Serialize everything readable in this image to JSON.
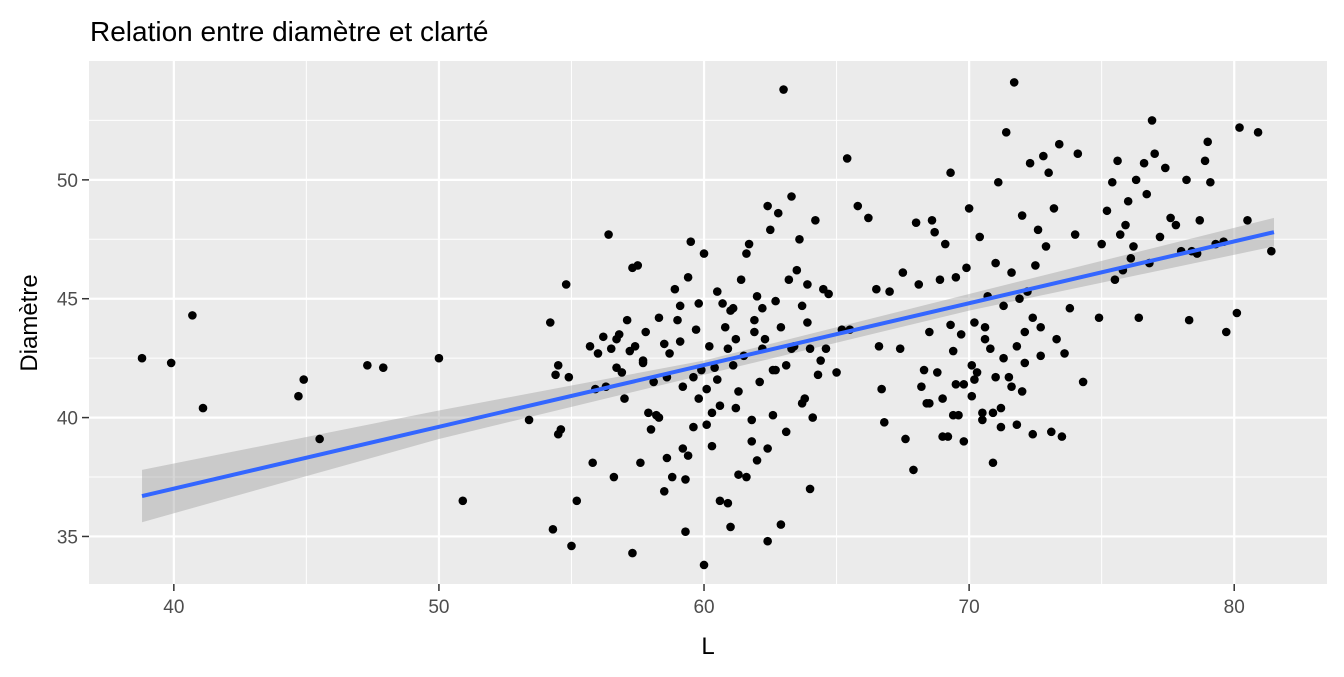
{
  "chart_data": {
    "type": "scatter",
    "title": "Relation entre diamètre et clarté",
    "xlabel": "L",
    "ylabel": "Diamètre",
    "xlim": [
      36.8,
      83.5
    ],
    "ylim": [
      33.0,
      55.0
    ],
    "x_ticks": [
      40,
      50,
      60,
      70,
      80
    ],
    "y_ticks": [
      35,
      40,
      45,
      50
    ],
    "x_tick_labels": [
      "40",
      "50",
      "60",
      "70",
      "80"
    ],
    "y_tick_labels": [
      "35",
      "40",
      "45",
      "50"
    ],
    "grid": true,
    "legend": "none",
    "colors": {
      "panel_background": "#ebebeb",
      "grid_major": "#ffffff",
      "point": "#000000",
      "fit_line": "#3366ff",
      "confidence_band": "#999999",
      "tick_label": "#4d4d4d",
      "axis_title": "#000000"
    },
    "fit": {
      "method": "linear",
      "line": [
        [
          38.8,
          36.7
        ],
        [
          81.5,
          47.8
        ]
      ],
      "band": {
        "x": [
          38.8,
          50,
          60,
          70,
          81.5
        ],
        "lower": [
          35.6,
          39.1,
          41.8,
          44.5,
          47.2
        ],
        "upper": [
          37.8,
          40.3,
          42.4,
          45.2,
          48.4
        ]
      }
    },
    "points": [
      [
        38.8,
        42.5
      ],
      [
        39.9,
        42.3
      ],
      [
        40.7,
        44.3
      ],
      [
        41.1,
        40.4
      ],
      [
        44.7,
        40.9
      ],
      [
        44.9,
        41.6
      ],
      [
        45.5,
        39.1
      ],
      [
        47.3,
        42.2
      ],
      [
        47.9,
        42.1
      ],
      [
        50.0,
        42.5
      ],
      [
        50.9,
        36.5
      ],
      [
        53.4,
        39.9
      ],
      [
        54.2,
        44.0
      ],
      [
        54.3,
        35.3
      ],
      [
        54.5,
        42.2
      ],
      [
        54.5,
        39.3
      ],
      [
        54.4,
        41.8
      ],
      [
        54.6,
        39.5
      ],
      [
        54.8,
        45.6
      ],
      [
        54.9,
        41.7
      ],
      [
        55.0,
        34.6
      ],
      [
        55.2,
        36.5
      ],
      [
        55.7,
        43.0
      ],
      [
        55.8,
        38.1
      ],
      [
        56.0,
        42.7
      ],
      [
        56.3,
        41.3
      ],
      [
        56.4,
        47.7
      ],
      [
        56.5,
        42.9
      ],
      [
        56.6,
        37.5
      ],
      [
        56.7,
        43.3
      ],
      [
        56.8,
        43.5
      ],
      [
        56.9,
        41.9
      ],
      [
        57.0,
        40.8
      ],
      [
        57.1,
        44.1
      ],
      [
        57.2,
        42.8
      ],
      [
        57.3,
        46.3
      ],
      [
        57.4,
        43.0
      ],
      [
        57.5,
        46.4
      ],
      [
        57.6,
        38.1
      ],
      [
        57.7,
        42.4
      ],
      [
        57.8,
        43.6
      ],
      [
        57.3,
        34.3
      ],
      [
        58.1,
        41.5
      ],
      [
        58.2,
        40.1
      ],
      [
        58.3,
        40.0
      ],
      [
        58.5,
        43.1
      ],
      [
        58.6,
        41.7
      ],
      [
        58.7,
        42.7
      ],
      [
        58.8,
        37.5
      ],
      [
        58.9,
        45.4
      ],
      [
        59.0,
        44.1
      ],
      [
        59.1,
        43.2
      ],
      [
        59.2,
        41.3
      ],
      [
        59.3,
        37.4
      ],
      [
        59.4,
        45.9
      ],
      [
        59.5,
        47.4
      ],
      [
        59.6,
        41.7
      ],
      [
        59.7,
        43.7
      ],
      [
        59.8,
        44.8
      ],
      [
        59.9,
        42.0
      ],
      [
        60.0,
        46.9
      ],
      [
        60.1,
        41.2
      ],
      [
        60.2,
        43.0
      ],
      [
        60.3,
        40.2
      ],
      [
        60.4,
        42.1
      ],
      [
        60.5,
        41.6
      ],
      [
        60.6,
        40.5
      ],
      [
        60.7,
        44.8
      ],
      [
        60.8,
        43.8
      ],
      [
        60.9,
        42.9
      ],
      [
        61.0,
        44.5
      ],
      [
        61.1,
        42.2
      ],
      [
        61.2,
        43.3
      ],
      [
        61.3,
        41.1
      ],
      [
        61.4,
        45.8
      ],
      [
        61.5,
        42.6
      ],
      [
        61.6,
        46.9
      ],
      [
        61.7,
        47.3
      ],
      [
        61.8,
        39.9
      ],
      [
        61.9,
        44.1
      ],
      [
        62.0,
        45.1
      ],
      [
        62.1,
        41.5
      ],
      [
        62.2,
        44.6
      ],
      [
        62.3,
        43.3
      ],
      [
        62.4,
        48.9
      ],
      [
        62.5,
        47.9
      ],
      [
        62.6,
        42.0
      ],
      [
        62.7,
        44.9
      ],
      [
        62.8,
        48.6
      ],
      [
        62.9,
        43.8
      ],
      [
        63.0,
        53.8
      ],
      [
        63.1,
        42.2
      ],
      [
        63.2,
        45.8
      ],
      [
        63.3,
        49.3
      ],
      [
        63.4,
        43.0
      ],
      [
        63.5,
        46.2
      ],
      [
        63.6,
        47.5
      ],
      [
        63.7,
        44.7
      ],
      [
        63.8,
        40.8
      ],
      [
        63.9,
        45.6
      ],
      [
        64.0,
        42.9
      ],
      [
        64.1,
        40.0
      ],
      [
        64.2,
        48.3
      ],
      [
        64.3,
        41.8
      ],
      [
        64.5,
        45.4
      ],
      [
        64.6,
        42.9
      ],
      [
        64.7,
        45.2
      ],
      [
        65.0,
        41.9
      ],
      [
        65.2,
        43.7
      ],
      [
        65.4,
        50.9
      ],
      [
        65.8,
        48.9
      ],
      [
        66.2,
        48.4
      ],
      [
        66.5,
        45.4
      ],
      [
        66.6,
        43.0
      ],
      [
        66.7,
        41.2
      ],
      [
        66.8,
        39.8
      ],
      [
        67.0,
        45.3
      ],
      [
        67.4,
        42.9
      ],
      [
        67.5,
        46.1
      ],
      [
        67.6,
        39.1
      ],
      [
        67.9,
        37.8
      ],
      [
        68.0,
        48.2
      ],
      [
        68.1,
        45.6
      ],
      [
        68.2,
        41.3
      ],
      [
        68.3,
        42.0
      ],
      [
        68.4,
        40.6
      ],
      [
        68.5,
        43.6
      ],
      [
        68.6,
        48.3
      ],
      [
        68.7,
        47.8
      ],
      [
        68.8,
        41.9
      ],
      [
        68.9,
        45.8
      ],
      [
        69.0,
        40.8
      ],
      [
        69.1,
        47.3
      ],
      [
        69.2,
        39.2
      ],
      [
        69.3,
        50.3
      ],
      [
        69.4,
        42.8
      ],
      [
        69.5,
        45.9
      ],
      [
        69.6,
        40.1
      ],
      [
        69.7,
        43.5
      ],
      [
        69.8,
        41.4
      ],
      [
        69.9,
        46.3
      ],
      [
        70.0,
        48.8
      ],
      [
        70.1,
        42.2
      ],
      [
        70.2,
        44.0
      ],
      [
        70.3,
        41.9
      ],
      [
        70.4,
        47.6
      ],
      [
        70.5,
        39.9
      ],
      [
        70.6,
        43.8
      ],
      [
        70.7,
        45.1
      ],
      [
        70.8,
        42.9
      ],
      [
        70.9,
        38.1
      ],
      [
        71.0,
        46.5
      ],
      [
        71.1,
        49.9
      ],
      [
        71.2,
        40.4
      ],
      [
        71.3,
        44.7
      ],
      [
        71.4,
        52.0
      ],
      [
        71.5,
        41.7
      ],
      [
        71.6,
        46.1
      ],
      [
        71.7,
        54.1
      ],
      [
        71.8,
        43.0
      ],
      [
        71.9,
        45.0
      ],
      [
        72.0,
        48.5
      ],
      [
        72.1,
        42.3
      ],
      [
        72.2,
        45.3
      ],
      [
        72.3,
        50.7
      ],
      [
        72.4,
        44.2
      ],
      [
        72.5,
        46.4
      ],
      [
        72.6,
        47.9
      ],
      [
        72.7,
        43.8
      ],
      [
        72.8,
        51.0
      ],
      [
        72.9,
        47.2
      ],
      [
        73.0,
        50.3
      ],
      [
        73.2,
        48.8
      ],
      [
        73.4,
        51.5
      ],
      [
        73.5,
        39.2
      ],
      [
        73.6,
        42.7
      ],
      [
        73.8,
        44.6
      ],
      [
        74.0,
        47.7
      ],
      [
        74.1,
        51.1
      ],
      [
        74.3,
        41.5
      ],
      [
        74.9,
        44.2
      ],
      [
        75.0,
        47.3
      ],
      [
        75.2,
        48.7
      ],
      [
        75.4,
        49.9
      ],
      [
        75.5,
        45.8
      ],
      [
        75.6,
        50.8
      ],
      [
        75.7,
        47.7
      ],
      [
        75.8,
        46.2
      ],
      [
        75.9,
        48.1
      ],
      [
        76.0,
        49.1
      ],
      [
        76.1,
        46.7
      ],
      [
        76.2,
        47.2
      ],
      [
        76.3,
        50.0
      ],
      [
        76.4,
        44.2
      ],
      [
        76.6,
        50.7
      ],
      [
        76.7,
        49.4
      ],
      [
        76.8,
        46.5
      ],
      [
        76.9,
        52.5
      ],
      [
        77.0,
        51.1
      ],
      [
        77.2,
        47.6
      ],
      [
        77.4,
        50.5
      ],
      [
        77.6,
        48.4
      ],
      [
        77.8,
        48.1
      ],
      [
        78.0,
        47.0
      ],
      [
        78.2,
        50.0
      ],
      [
        78.3,
        44.1
      ],
      [
        78.4,
        47.0
      ],
      [
        78.6,
        46.9
      ],
      [
        78.7,
        48.3
      ],
      [
        78.9,
        50.8
      ],
      [
        79.0,
        51.6
      ],
      [
        79.1,
        49.9
      ],
      [
        79.3,
        47.3
      ],
      [
        79.6,
        47.4
      ],
      [
        79.7,
        43.6
      ],
      [
        80.1,
        44.4
      ],
      [
        80.2,
        52.2
      ],
      [
        80.5,
        48.3
      ],
      [
        80.9,
        52.0
      ],
      [
        81.4,
        47.0
      ],
      [
        58.0,
        39.5
      ],
      [
        58.6,
        38.3
      ],
      [
        59.2,
        38.7
      ],
      [
        59.8,
        40.8
      ],
      [
        60.3,
        38.8
      ],
      [
        60.6,
        36.5
      ],
      [
        61.0,
        35.4
      ],
      [
        61.3,
        37.6
      ],
      [
        61.8,
        39.0
      ],
      [
        62.0,
        38.2
      ],
      [
        62.4,
        34.8
      ],
      [
        62.9,
        35.5
      ],
      [
        63.1,
        39.4
      ],
      [
        64.0,
        37.0
      ],
      [
        59.6,
        39.6
      ],
      [
        60.9,
        36.4
      ],
      [
        59.3,
        35.2
      ],
      [
        60.0,
        33.8
      ],
      [
        61.6,
        37.5
      ],
      [
        62.4,
        38.7
      ],
      [
        63.7,
        40.6
      ],
      [
        62.6,
        40.1
      ],
      [
        68.5,
        40.6
      ],
      [
        69.4,
        40.1
      ],
      [
        70.1,
        40.9
      ],
      [
        70.5,
        40.2
      ],
      [
        71.2,
        39.6
      ],
      [
        71.8,
        39.7
      ],
      [
        72.4,
        39.3
      ],
      [
        73.1,
        39.4
      ],
      [
        69.0,
        39.2
      ],
      [
        69.8,
        39.0
      ],
      [
        70.9,
        40.2
      ],
      [
        72.0,
        41.1
      ],
      [
        69.5,
        41.4
      ],
      [
        70.2,
        41.6
      ],
      [
        71.6,
        41.3
      ],
      [
        72.7,
        42.6
      ],
      [
        73.3,
        43.3
      ],
      [
        71.0,
        41.7
      ],
      [
        69.3,
        43.9
      ],
      [
        70.6,
        43.3
      ],
      [
        71.3,
        42.5
      ],
      [
        72.1,
        43.6
      ],
      [
        56.7,
        42.1
      ],
      [
        57.9,
        40.2
      ],
      [
        58.5,
        36.9
      ],
      [
        59.4,
        38.4
      ],
      [
        60.1,
        39.7
      ],
      [
        61.2,
        40.4
      ],
      [
        55.9,
        41.2
      ],
      [
        56.2,
        43.4
      ],
      [
        57.7,
        42.3
      ],
      [
        58.3,
        44.2
      ],
      [
        59.1,
        44.7
      ],
      [
        60.5,
        45.3
      ],
      [
        61.1,
        44.6
      ],
      [
        61.9,
        43.6
      ],
      [
        62.2,
        42.9
      ],
      [
        62.7,
        42.0
      ],
      [
        63.3,
        42.9
      ],
      [
        63.9,
        44.0
      ],
      [
        64.4,
        42.4
      ],
      [
        65.5,
        43.7
      ]
    ]
  }
}
